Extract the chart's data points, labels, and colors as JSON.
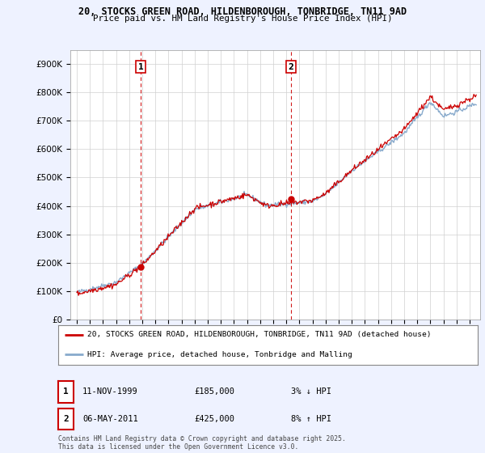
{
  "title_line1": "20, STOCKS GREEN ROAD, HILDENBOROUGH, TONBRIDGE, TN11 9AD",
  "title_line2": "Price paid vs. HM Land Registry's House Price Index (HPI)",
  "ylim": [
    0,
    950000
  ],
  "yticks": [
    0,
    100000,
    200000,
    300000,
    400000,
    500000,
    600000,
    700000,
    800000,
    900000
  ],
  "ytick_labels": [
    "£0",
    "£100K",
    "£200K",
    "£300K",
    "£400K",
    "£500K",
    "£600K",
    "£700K",
    "£800K",
    "£900K"
  ],
  "sale1_date": 1999.87,
  "sale1_price": 185000,
  "sale1_label": "1",
  "sale2_date": 2011.35,
  "sale2_price": 425000,
  "sale2_label": "2",
  "property_color": "#cc0000",
  "hpi_color": "#88aacc",
  "legend_property": "20, STOCKS GREEN ROAD, HILDENBOROUGH, TONBRIDGE, TN11 9AD (detached house)",
  "legend_hpi": "HPI: Average price, detached house, Tonbridge and Malling",
  "table_row1": [
    "1",
    "11-NOV-1999",
    "£185,000",
    "3% ↓ HPI"
  ],
  "table_row2": [
    "2",
    "06-MAY-2011",
    "£425,000",
    "8% ↑ HPI"
  ],
  "footer": "Contains HM Land Registry data © Crown copyright and database right 2025.\nThis data is licensed under the Open Government Licence v3.0.",
  "bg_color": "#eef2ff",
  "plot_bg": "#ffffff",
  "xmin": 1994.5,
  "xmax": 2025.8
}
